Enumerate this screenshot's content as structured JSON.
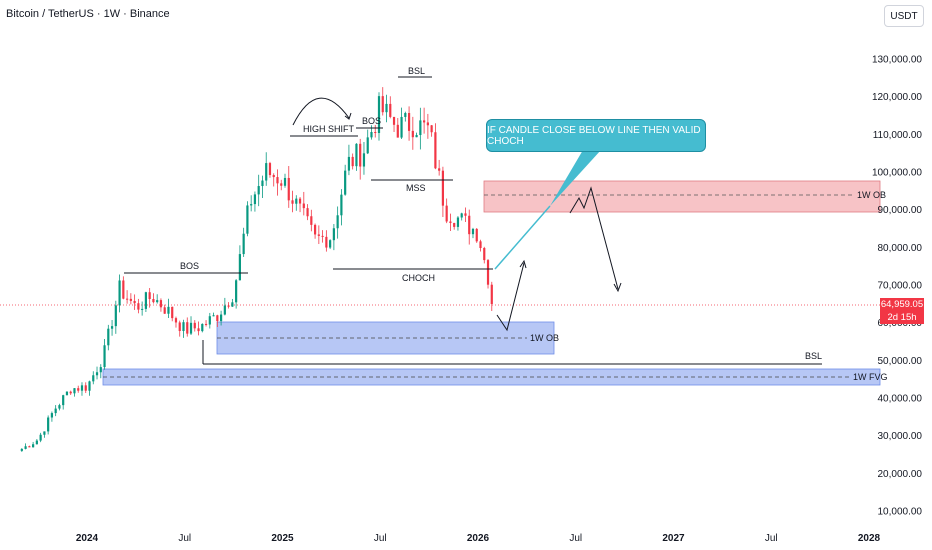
{
  "header": {
    "symbol": "Bitcoin / TetherUS · 1W · Binance",
    "currency": "USDT"
  },
  "price_tag": {
    "price": "64,959.05",
    "countdown": "2d 15h"
  },
  "callout": {
    "text": "IF CANDLE CLOSE BELOW LINE THEN VALID CHOCH"
  },
  "labels": {
    "bos1": "BOS",
    "high_shift": "HIGH SHIFT",
    "bos2": "BOS",
    "bsl_top": "BSL",
    "mss": "MSS",
    "choch": "CHOCH",
    "ob_1w_upper": "1W OB",
    "ob_1w_lower": "1W OB",
    "bsl_bottom": "BSL",
    "fvg_1w": "1W FVG"
  },
  "chart_data": {
    "type": "candlestick",
    "title": "Bitcoin / TetherUS · 1W · Binance",
    "y_unit": "USDT",
    "yticks": [
      10000,
      20000,
      30000,
      40000,
      50000,
      60000,
      70000,
      80000,
      90000,
      100000,
      110000,
      120000,
      130000
    ],
    "ytick_labels": [
      "10,000.00",
      "20,000.00",
      "30,000.00",
      "40,000.00",
      "50,000.00",
      "60,000.00",
      "70,000.00",
      "80,000.00",
      "90,000.00",
      "100,000.00",
      "110,000.00",
      "120,000.00",
      "130,000.00"
    ],
    "xticks": [
      {
        "label": "2024",
        "date": "2024-01"
      },
      {
        "label": "Jul",
        "date": "2024-07"
      },
      {
        "label": "2025",
        "date": "2025-01"
      },
      {
        "label": "Jul",
        "date": "2025-07"
      },
      {
        "label": "2026",
        "date": "2026-01"
      },
      {
        "label": "Jul",
        "date": "2026-07"
      },
      {
        "label": "2027",
        "date": "2027-01"
      },
      {
        "label": "Jul",
        "date": "2027-07"
      },
      {
        "label": "2028",
        "date": "2028-01"
      }
    ],
    "current_price": 64959.05,
    "close_path": [
      [
        "2023-09",
        26500
      ],
      [
        "2023-10",
        29000
      ],
      [
        "2023-11",
        37000
      ],
      [
        "2023-12",
        42500
      ],
      [
        "2024-01",
        43000
      ],
      [
        "2024-02",
        51000
      ],
      [
        "2024-03",
        69000
      ],
      [
        "2024-04",
        64000
      ],
      [
        "2024-05",
        67000
      ],
      [
        "2024-06",
        63000
      ],
      [
        "2024-07",
        58000
      ],
      [
        "2024-08",
        59000
      ],
      [
        "2024-09",
        62000
      ],
      [
        "2024-10",
        68000
      ],
      [
        "2024-11",
        92000
      ],
      [
        "2024-12",
        100000
      ],
      [
        "2025-01",
        98000
      ],
      [
        "2025-02",
        90000
      ],
      [
        "2025-03",
        82000
      ],
      [
        "2025-04",
        83000
      ],
      [
        "2025-05",
        102000
      ],
      [
        "2025-06",
        106000
      ],
      [
        "2025-07",
        117000
      ],
      [
        "2025-08",
        112000
      ],
      [
        "2025-09",
        113000
      ],
      [
        "2025-10",
        111000
      ],
      [
        "2025-11",
        90000
      ],
      [
        "2025-12",
        87000
      ],
      [
        "2026-01",
        84000
      ],
      [
        "2026-02",
        64959
      ]
    ],
    "zones": [
      {
        "label": "1W OB",
        "from": "2025-12",
        "low": 89000,
        "high": 98000,
        "color": "#f7c3c6"
      },
      {
        "label": "1W OB",
        "from": "2024-08",
        "low": 52000,
        "high": 61000,
        "color": "#b7c7f5"
      },
      {
        "label": "1W FVG",
        "from": "2024-02",
        "low": 44000,
        "high": 48500,
        "color": "#b7c7f5"
      }
    ],
    "levels": [
      {
        "label": "BOS",
        "price": 73500
      },
      {
        "label": "HIGH SHIFT",
        "price": 108500
      },
      {
        "label": "BOS",
        "price": 112000
      },
      {
        "label": "BSL",
        "price": 126000
      },
      {
        "label": "MSS",
        "price": 98000
      },
      {
        "label": "CHOCH",
        "price": 74500
      },
      {
        "label": "BSL",
        "price": 49000
      }
    ],
    "grid": false,
    "legend": "none"
  }
}
